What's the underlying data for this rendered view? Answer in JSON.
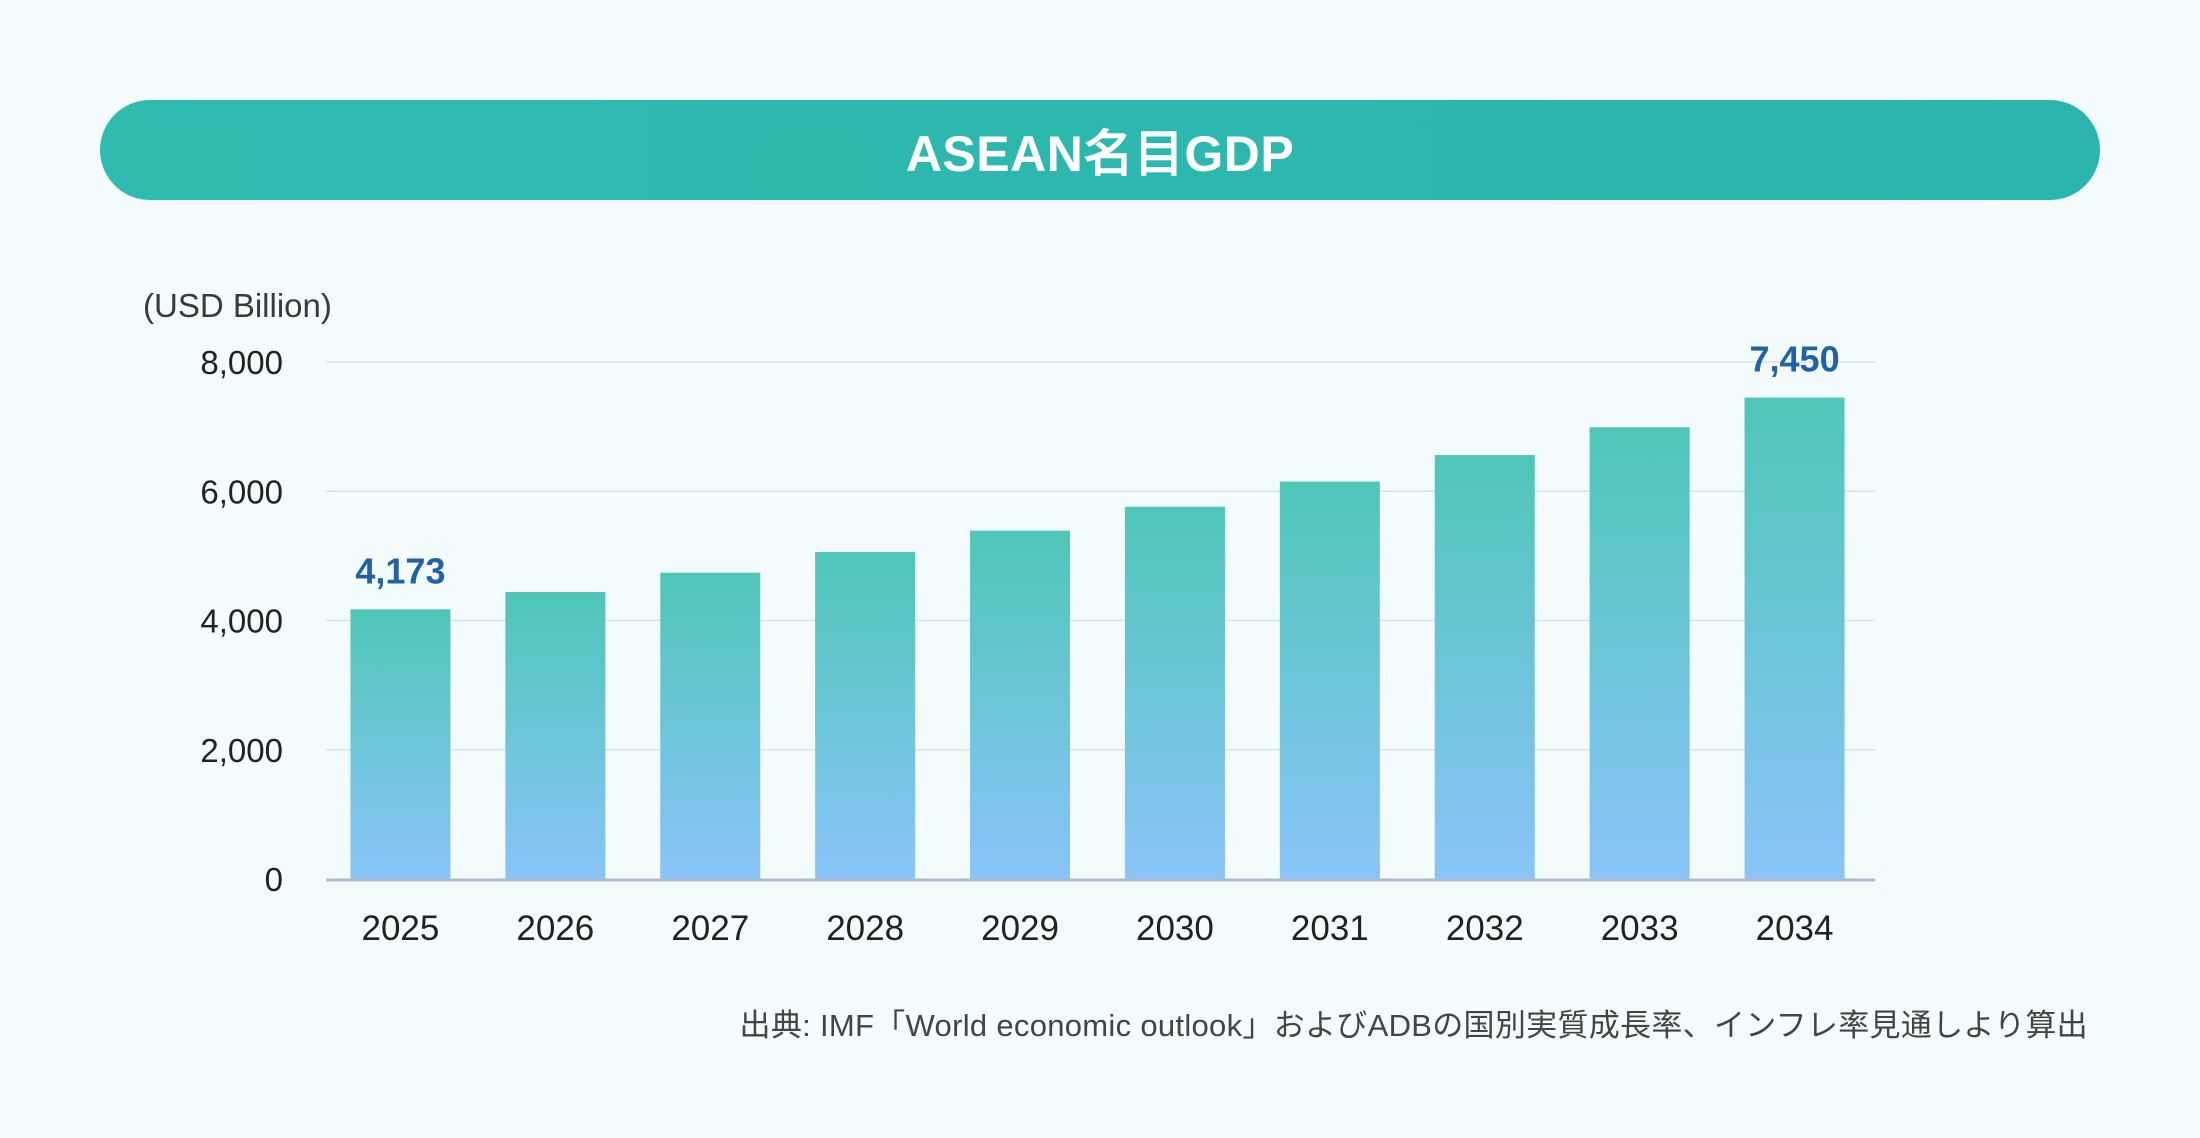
{
  "header": {
    "title": "ASEAN名目GDP"
  },
  "colors": {
    "title_bar": "#2cb8ae",
    "bar_top": "#4fc6b8",
    "bar_bottom": "#8ac4f8",
    "data_label": "#1f63a6",
    "axis_text": "#222222",
    "gridline": "#d5e4ea"
  },
  "chart_data": {
    "type": "bar",
    "title": "ASEAN名目GDP",
    "ylabel": "(USD Billion)",
    "xlabel": "",
    "ylim": [
      0,
      8000
    ],
    "yticks": [
      0,
      2000,
      4000,
      6000,
      8000
    ],
    "ytick_labels": [
      "0",
      "2,000",
      "4,000",
      "6,000",
      "8,000"
    ],
    "categories": [
      "2025",
      "2026",
      "2027",
      "2028",
      "2029",
      "2030",
      "2031",
      "2032",
      "2033",
      "2034"
    ],
    "values": [
      4173,
      4440,
      4740,
      5060,
      5390,
      5760,
      6150,
      6560,
      6990,
      7450
    ],
    "data_labels": [
      {
        "category": "2025",
        "text": "4,173"
      },
      {
        "category": "2034",
        "text": "7,450"
      }
    ],
    "grid": true,
    "legend": "none"
  },
  "footer": {
    "source": "出典: IMF「World economic outlook」およびADBの国別実質成長率、インフレ率見通しより算出"
  }
}
